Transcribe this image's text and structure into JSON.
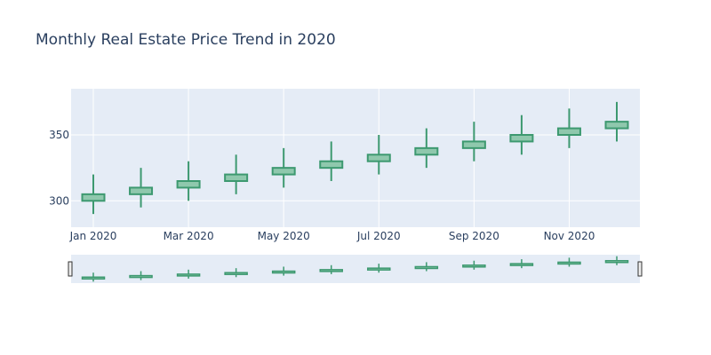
{
  "chart_data": {
    "type": "candlestick",
    "title": "Monthly Real Estate Price Trend in 2020",
    "xlabel": "",
    "ylabel": "",
    "x": [
      "2020-01",
      "2020-02",
      "2020-03",
      "2020-04",
      "2020-05",
      "2020-06",
      "2020-07",
      "2020-08",
      "2020-09",
      "2020-10",
      "2020-11",
      "2020-12"
    ],
    "open": [
      300,
      305,
      310,
      315,
      320,
      325,
      330,
      335,
      340,
      345,
      350,
      355
    ],
    "high": [
      320,
      325,
      330,
      335,
      340,
      345,
      350,
      355,
      360,
      365,
      370,
      375
    ],
    "low": [
      290,
      295,
      300,
      305,
      310,
      315,
      320,
      325,
      330,
      335,
      340,
      345
    ],
    "close": [
      305,
      310,
      315,
      320,
      325,
      330,
      335,
      340,
      345,
      350,
      355,
      360
    ],
    "x_tick_labels": [
      {
        "x": "2020-01",
        "label": "Jan 2020"
      },
      {
        "x": "2020-03",
        "label": "Mar 2020"
      },
      {
        "x": "2020-05",
        "label": "May 2020"
      },
      {
        "x": "2020-07",
        "label": "Jul 2020"
      },
      {
        "x": "2020-09",
        "label": "Sep 2020"
      },
      {
        "x": "2020-11",
        "label": "Nov 2020"
      }
    ],
    "y_ticks": [
      300,
      350
    ],
    "ylim": [
      280,
      385
    ],
    "grid": true,
    "rangeslider": true,
    "legend": "none",
    "colors": {
      "increasing_line": "#3d9970",
      "increasing_fill": "#8fc8ad",
      "plot_bg": "#e5ecf6",
      "grid": "#ffffff",
      "text": "#2a3f5f",
      "page_bg": "#ffffff"
    }
  }
}
